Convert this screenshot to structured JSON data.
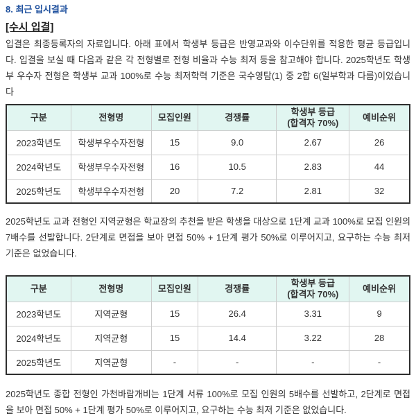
{
  "doc": {
    "section_heading": "8. 최근 입시결과",
    "subsection_heading": "[수시 입결]",
    "paragraph1": "입결은 최종등록자의 자료입니다. 아래 표에서 학생부 등급은 반영교과와 이수단위를 적용한 평균 등급입니다. 입결을 보실 때 다음과 같은 각 전형별로 전형 비율과 수능 최저 등을 참고해야 합니다. 2025학년도 학생부 우수자 전형은 학생부 교과 100%로 수능 최저학력 기준은 국수영탐(1) 중 2합 6(일부학과 다름)이었습니다",
    "paragraph2": "2025학년도 교과 전형인 지역균형은 학교장의 추천을 받은 학생을 대상으로 1단계 교과 100%로 모집 인원의 7배수를 선발합니다. 2단계로 면접을 보아 면접 50% + 1단계 평가 50%로 이루어지고, 요구하는 수능 최저 기준은 없었습니다.",
    "paragraph3": "2025학년도 종합 전형인 가천바람개비는 1단계 서류 100%로 모집 인원의 5배수를 선발하고, 2단계로 면접을 보아 면접 50% + 1단계 평가 50%로 이루어지고, 요구하는 수능 최저 기준은 없었습니다."
  },
  "table_headers": {
    "gubun": "구분",
    "jeonhyeong_name": "전형명",
    "mojip_inwon": "모집인원",
    "gyeongjaengnyul": "경쟁률",
    "hakseangbu_deunggeup": "학생부 등급\n(합격자 70%)",
    "yebi_sunwi": "예비순위"
  },
  "tables": {
    "usuja": {
      "rows": [
        [
          "2023학년도",
          "학생부우수자전형",
          "15",
          "9.0",
          "2.67",
          "26"
        ],
        [
          "2024학년도",
          "학생부우수자전형",
          "16",
          "10.5",
          "2.83",
          "44"
        ],
        [
          "2025학년도",
          "학생부우수자전형",
          "20",
          "7.2",
          "2.81",
          "32"
        ]
      ]
    },
    "jiyeok": {
      "rows": [
        [
          "2023학년도",
          "지역균형",
          "15",
          "26.4",
          "3.31",
          "9"
        ],
        [
          "2024학년도",
          "지역균형",
          "15",
          "14.4",
          "3.22",
          "28"
        ],
        [
          "2025학년도",
          "지역균형",
          "-",
          "-",
          "-",
          "-"
        ]
      ]
    }
  },
  "colors": {
    "heading_blue": "#1d4f9d",
    "table_header_bg": "#e1f6f1",
    "table_outer_border": "#2e2e2e",
    "table_inner_border": "#cccccc",
    "body_text": "#333333"
  }
}
